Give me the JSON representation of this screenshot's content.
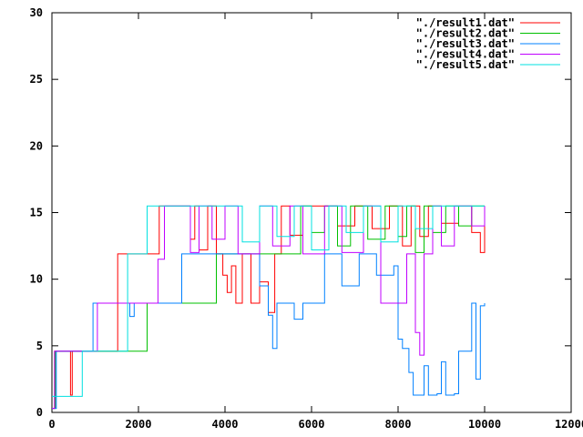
{
  "chart_data": {
    "type": "line",
    "title": "",
    "xlabel": "",
    "ylabel": "",
    "xlim": [
      0,
      12000
    ],
    "ylim": [
      0,
      30
    ],
    "xticks": [
      0,
      2000,
      4000,
      6000,
      8000,
      10000,
      12000
    ],
    "yticks": [
      0,
      5,
      10,
      15,
      20,
      25,
      30
    ],
    "grid": false,
    "legend_position": "top-right",
    "series": [
      {
        "name": "\"./result1.dat\"",
        "color": "#ff0000",
        "points": [
          [
            0,
            0.3
          ],
          [
            60,
            4.6
          ],
          [
            380,
            4.6
          ],
          [
            430,
            1.3
          ],
          [
            470,
            4.6
          ],
          [
            1500,
            4.6
          ],
          [
            1520,
            11.9
          ],
          [
            2460,
            11.9
          ],
          [
            2480,
            15.5
          ],
          [
            3100,
            15.5
          ],
          [
            3200,
            13.0
          ],
          [
            3300,
            15.5
          ],
          [
            3400,
            12.2
          ],
          [
            3600,
            15.5
          ],
          [
            3800,
            11.9
          ],
          [
            3950,
            10.3
          ],
          [
            4050,
            9.0
          ],
          [
            4150,
            11.0
          ],
          [
            4250,
            8.2
          ],
          [
            4400,
            11.9
          ],
          [
            4600,
            8.2
          ],
          [
            4800,
            9.8
          ],
          [
            5000,
            7.5
          ],
          [
            5150,
            11.9
          ],
          [
            5300,
            15.5
          ],
          [
            5500,
            13.3
          ],
          [
            5800,
            15.5
          ],
          [
            6200,
            15.5
          ],
          [
            6600,
            14.0
          ],
          [
            7000,
            15.5
          ],
          [
            7400,
            13.8
          ],
          [
            7800,
            15.5
          ],
          [
            8100,
            12.5
          ],
          [
            8300,
            15.5
          ],
          [
            8500,
            13.2
          ],
          [
            8700,
            15.5
          ],
          [
            9000,
            14.2
          ],
          [
            9400,
            15.5
          ],
          [
            9700,
            13.5
          ],
          [
            9900,
            12.0
          ],
          [
            10000,
            15.5
          ]
        ]
      },
      {
        "name": "\"./result2.dat\"",
        "color": "#00c000",
        "points": [
          [
            0,
            0.3
          ],
          [
            80,
            4.6
          ],
          [
            1000,
            4.6
          ],
          [
            1050,
            4.6
          ],
          [
            2180,
            4.6
          ],
          [
            2200,
            8.2
          ],
          [
            3780,
            8.2
          ],
          [
            3800,
            11.9
          ],
          [
            5700,
            11.9
          ],
          [
            5750,
            15.5
          ],
          [
            6000,
            13.5
          ],
          [
            6300,
            15.5
          ],
          [
            6600,
            12.5
          ],
          [
            6900,
            15.5
          ],
          [
            7300,
            13.0
          ],
          [
            7700,
            15.5
          ],
          [
            8000,
            13.2
          ],
          [
            8200,
            15.5
          ],
          [
            8400,
            12.0
          ],
          [
            8600,
            15.5
          ],
          [
            8800,
            13.5
          ],
          [
            9100,
            15.5
          ],
          [
            9400,
            14.0
          ],
          [
            9700,
            15.5
          ],
          [
            10000,
            15.5
          ]
        ]
      },
      {
        "name": "\"./result3.dat\"",
        "color": "#0080ff",
        "points": [
          [
            0,
            0.3
          ],
          [
            100,
            4.6
          ],
          [
            900,
            4.6
          ],
          [
            950,
            8.2
          ],
          [
            1700,
            8.2
          ],
          [
            1800,
            7.2
          ],
          [
            1900,
            8.2
          ],
          [
            2800,
            8.2
          ],
          [
            3000,
            11.9
          ],
          [
            4600,
            11.9
          ],
          [
            4800,
            9.5
          ],
          [
            5000,
            7.3
          ],
          [
            5100,
            4.8
          ],
          [
            5200,
            8.2
          ],
          [
            5600,
            7.0
          ],
          [
            5800,
            8.2
          ],
          [
            6300,
            11.9
          ],
          [
            6700,
            9.5
          ],
          [
            7100,
            11.9
          ],
          [
            7500,
            10.3
          ],
          [
            7900,
            11.0
          ],
          [
            8000,
            5.5
          ],
          [
            8100,
            4.8
          ],
          [
            8250,
            3.0
          ],
          [
            8350,
            1.3
          ],
          [
            8500,
            1.3
          ],
          [
            8600,
            3.5
          ],
          [
            8700,
            1.3
          ],
          [
            8900,
            1.4
          ],
          [
            9000,
            3.8
          ],
          [
            9100,
            1.3
          ],
          [
            9300,
            1.4
          ],
          [
            9400,
            4.6
          ],
          [
            9650,
            4.6
          ],
          [
            9700,
            8.2
          ],
          [
            9800,
            2.5
          ],
          [
            9900,
            8.0
          ],
          [
            10000,
            8.2
          ]
        ]
      },
      {
        "name": "\"./result4.dat\"",
        "color": "#c000ff",
        "points": [
          [
            0,
            0.3
          ],
          [
            60,
            4.6
          ],
          [
            1000,
            4.6
          ],
          [
            1050,
            8.2
          ],
          [
            2400,
            8.2
          ],
          [
            2450,
            11.5
          ],
          [
            2600,
            15.5
          ],
          [
            3200,
            12.0
          ],
          [
            3400,
            15.5
          ],
          [
            3700,
            13.0
          ],
          [
            4000,
            15.5
          ],
          [
            4300,
            11.9
          ],
          [
            4800,
            15.5
          ],
          [
            5100,
            12.5
          ],
          [
            5500,
            15.5
          ],
          [
            5800,
            11.9
          ],
          [
            6300,
            15.5
          ],
          [
            6700,
            12.0
          ],
          [
            7200,
            15.5
          ],
          [
            7600,
            8.2
          ],
          [
            8100,
            8.2
          ],
          [
            8200,
            11.9
          ],
          [
            8400,
            6.0
          ],
          [
            8500,
            4.3
          ],
          [
            8600,
            11.9
          ],
          [
            8800,
            15.5
          ],
          [
            9000,
            12.5
          ],
          [
            9300,
            15.5
          ],
          [
            9700,
            14.0
          ],
          [
            10000,
            15.5
          ]
        ]
      },
      {
        "name": "\"./result5.dat\"",
        "color": "#00e0e0",
        "points": [
          [
            0,
            1.2
          ],
          [
            100,
            1.2
          ],
          [
            650,
            1.2
          ],
          [
            700,
            4.6
          ],
          [
            1700,
            4.6
          ],
          [
            1750,
            11.9
          ],
          [
            2150,
            11.9
          ],
          [
            2200,
            15.5
          ],
          [
            4000,
            15.5
          ],
          [
            4400,
            12.8
          ],
          [
            4800,
            15.5
          ],
          [
            5200,
            13.2
          ],
          [
            5600,
            15.5
          ],
          [
            6000,
            12.2
          ],
          [
            6400,
            15.5
          ],
          [
            6800,
            13.5
          ],
          [
            7200,
            15.5
          ],
          [
            7600,
            12.8
          ],
          [
            8000,
            15.5
          ],
          [
            8400,
            13.8
          ],
          [
            8800,
            15.5
          ],
          [
            10000,
            15.5
          ]
        ]
      }
    ]
  }
}
